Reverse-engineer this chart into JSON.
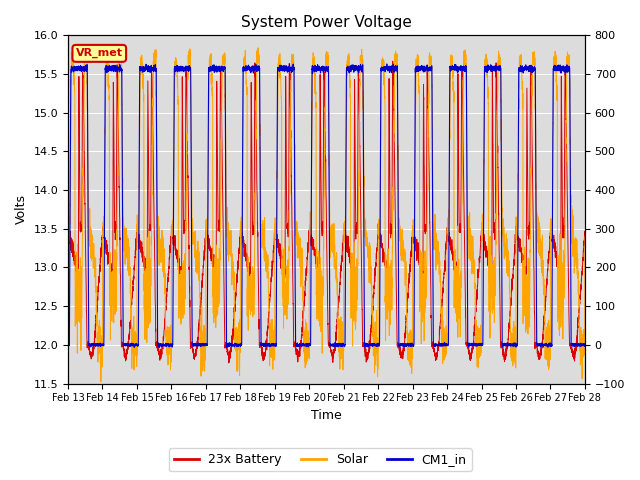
{
  "title": "System Power Voltage",
  "xlabel": "Time",
  "ylabel_left": "Volts",
  "ylim_left": [
    11.5,
    16.0
  ],
  "ylim_right": [
    -100,
    800
  ],
  "yticks_left": [
    11.5,
    12.0,
    12.5,
    13.0,
    13.5,
    14.0,
    14.5,
    15.0,
    15.5,
    16.0
  ],
  "yticks_right": [
    -100,
    0,
    100,
    200,
    300,
    400,
    500,
    600,
    700,
    800
  ],
  "x_tick_labels": [
    "Feb 13",
    "Feb 14",
    "Feb 15",
    "Feb 16",
    "Feb 17",
    "Feb 18",
    "Feb 19",
    "Feb 20",
    "Feb 21",
    "Feb 22",
    "Feb 23",
    "Feb 24",
    "Feb 25",
    "Feb 26",
    "Feb 27",
    "Feb 28"
  ],
  "color_battery": "#dd0000",
  "color_solar": "#ffa500",
  "color_cm1": "#0000cc",
  "legend_labels": [
    "23x Battery",
    "Solar",
    "CM1_in"
  ],
  "vr_met_label": "VR_met",
  "vr_met_color": "#cc0000",
  "vr_met_bg": "#ffff99",
  "plot_bg_color": "#dcdcdc",
  "grid_color": "#ffffff",
  "n_points": 5000,
  "n_days": 15
}
